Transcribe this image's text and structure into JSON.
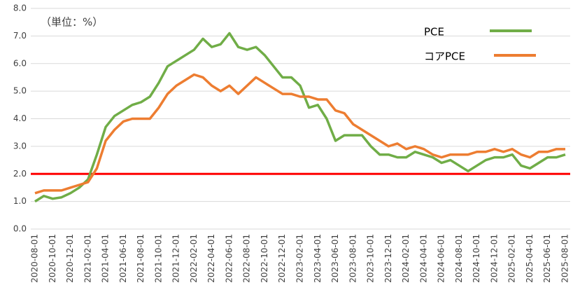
{
  "chart_data": {
    "type": "line",
    "annotation": "（単位：%）",
    "categories": [
      "2020-08-01",
      null,
      "2020-10-01",
      null,
      "2020-12-01",
      null,
      "2021-02-01",
      null,
      "2021-04-01",
      null,
      "2021-06-01",
      null,
      "2021-08-01",
      null,
      "2021-10-01",
      null,
      "2021-12-01",
      null,
      "2022-02-01",
      null,
      "2022-04-01",
      null,
      "2022-06-01",
      null,
      "2022-08-01",
      null,
      "2022-10-01",
      null,
      "2022-12-01",
      null,
      "2023-02-01",
      null,
      "2023-04-01",
      null,
      "2023-06-01",
      null,
      "2023-08-01",
      null,
      "2023-10-01",
      null,
      "2023-12-01",
      null,
      "2024-02-01",
      null,
      "2024-04-01",
      null,
      "2024-06-01",
      null,
      "2024-08-01",
      null,
      "2024-10-01",
      null,
      "2024-12-01",
      null,
      "2025-02-01",
      null,
      "2025-04-01",
      null,
      "2025-06-01",
      null,
      "2025-08-01"
    ],
    "series": [
      {
        "name": "PCE",
        "color": "#70ad47",
        "values": [
          1.0,
          1.2,
          1.1,
          1.15,
          1.3,
          1.5,
          1.8,
          2.7,
          3.7,
          4.1,
          4.3,
          4.5,
          4.6,
          4.8,
          5.3,
          5.9,
          6.1,
          6.3,
          6.5,
          6.9,
          6.6,
          6.7,
          7.1,
          6.6,
          6.5,
          6.6,
          6.3,
          5.9,
          5.5,
          5.5,
          5.2,
          4.4,
          4.5,
          4.0,
          3.2,
          3.4,
          3.4,
          3.4,
          3.0,
          2.7,
          2.7,
          2.6,
          2.6,
          2.8,
          2.7,
          2.6,
          2.4,
          2.5,
          2.3,
          2.1,
          2.3,
          2.5,
          2.6,
          2.6,
          2.7,
          2.3,
          2.2,
          2.4,
          2.6,
          2.6,
          2.7
        ]
      },
      {
        "name": "コアPCE",
        "color": "#ed7d31",
        "values": [
          1.3,
          1.4,
          1.4,
          1.4,
          1.5,
          1.6,
          1.7,
          2.2,
          3.2,
          3.6,
          3.9,
          4.0,
          4.0,
          4.0,
          4.4,
          4.9,
          5.2,
          5.4,
          5.6,
          5.5,
          5.2,
          5.0,
          5.2,
          4.9,
          5.2,
          5.5,
          5.3,
          5.1,
          4.9,
          4.9,
          4.8,
          4.8,
          4.7,
          4.7,
          4.3,
          4.2,
          3.8,
          3.6,
          3.4,
          3.2,
          3.0,
          3.1,
          2.9,
          3.0,
          2.9,
          2.7,
          2.6,
          2.7,
          2.7,
          2.7,
          2.8,
          2.8,
          2.9,
          2.8,
          2.9,
          2.7,
          2.6,
          2.8,
          2.8,
          2.9,
          2.9
        ]
      }
    ],
    "reference_line": {
      "value": 2,
      "color": "#ff0000"
    },
    "ylim": [
      0,
      8
    ],
    "yticks": [
      {
        "value": 0,
        "label": "0.0"
      },
      {
        "value": 1,
        "label": "1.0"
      },
      {
        "value": 2,
        "label": "2.0"
      },
      {
        "value": 3,
        "label": "3.0"
      },
      {
        "value": 4,
        "label": "4.0"
      },
      {
        "value": 5,
        "label": "5.0"
      },
      {
        "value": 6,
        "label": "6.0"
      },
      {
        "value": 7,
        "label": "7.0"
      },
      {
        "value": 8,
        "label": "8.0"
      }
    ],
    "grid": true
  }
}
